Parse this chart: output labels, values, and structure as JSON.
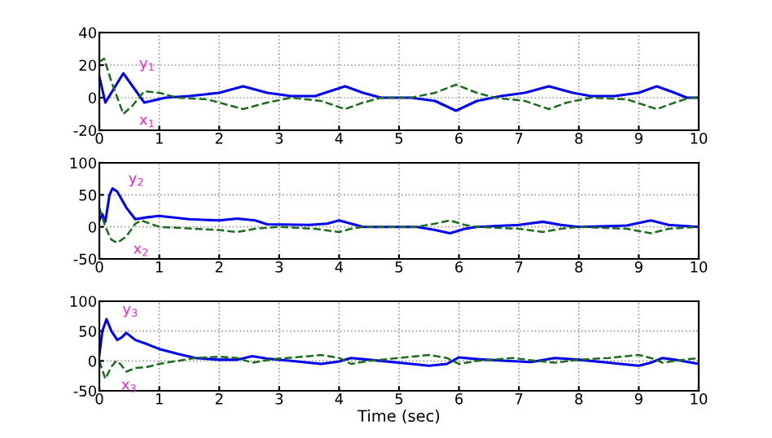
{
  "chart_data": [
    {
      "type": "line",
      "xlim": [
        0,
        10
      ],
      "xticks": [
        0,
        1,
        2,
        3,
        4,
        5,
        6,
        7,
        8,
        9,
        10
      ],
      "ylim": [
        -20,
        40
      ],
      "yticks": [
        -20,
        0,
        20,
        40
      ],
      "grid": true,
      "series": [
        {
          "name": "y$_{1}$",
          "color": "#0000ee",
          "line_style": "solid",
          "x": [
            0,
            0.1,
            0.4,
            0.75,
            1.1,
            1.5,
            2,
            2.4,
            2.8,
            3.2,
            3.6,
            4.1,
            4.4,
            4.7,
            5.2,
            5.6,
            5.95,
            6.3,
            6.7,
            7.1,
            7.5,
            7.9,
            8.2,
            8.6,
            9,
            9.3,
            9.6,
            9.8,
            10
          ],
          "values": [
            13,
            -3,
            15,
            -3,
            0,
            1,
            3,
            7,
            3,
            1,
            1,
            7,
            3,
            0,
            0,
            -2,
            -8,
            -2,
            1,
            3,
            7,
            3,
            1,
            1,
            3,
            7,
            3,
            0,
            0
          ]
        },
        {
          "name": "x$_{1}$",
          "color": "#1a6e1a",
          "line_style": "dashed",
          "x": [
            0,
            0.08,
            0.2,
            0.4,
            0.55,
            0.75,
            1,
            1.3,
            1.8,
            2.1,
            2.4,
            2.8,
            3.2,
            3.7,
            4.1,
            4.4,
            4.7,
            5.2,
            5.6,
            5.95,
            6.3,
            6.6,
            7.1,
            7.5,
            7.8,
            8.2,
            8.8,
            9.3,
            9.6,
            9.85,
            10
          ],
          "values": [
            22,
            24,
            10,
            -10,
            -5,
            4,
            3,
            0,
            -1,
            -4,
            -7,
            -3,
            0,
            -2,
            -7,
            -3,
            0,
            0,
            3,
            8,
            3,
            0,
            -2,
            -7,
            -3,
            0,
            -1,
            -7,
            -3,
            0,
            0
          ]
        }
      ],
      "legend": false
    },
    {
      "type": "line",
      "xlim": [
        0,
        10
      ],
      "xticks": [
        0,
        1,
        2,
        3,
        4,
        5,
        6,
        7,
        8,
        9,
        10
      ],
      "ylim": [
        -50,
        100
      ],
      "yticks": [
        -50,
        0,
        50,
        100
      ],
      "grid": true,
      "series": [
        {
          "name": "y$_{2}$",
          "color": "#0000ee",
          "line_style": "solid",
          "x": [
            0,
            0.05,
            0.1,
            0.17,
            0.22,
            0.3,
            0.45,
            0.6,
            0.8,
            1,
            1.5,
            2,
            2.3,
            2.6,
            2.8,
            3.5,
            3.8,
            4,
            4.2,
            4.4,
            5.3,
            5.6,
            5.85,
            6.1,
            6.3,
            7,
            7.4,
            7.7,
            8,
            8.8,
            9.2,
            9.5,
            10
          ],
          "values": [
            10,
            20,
            8,
            50,
            60,
            55,
            30,
            12,
            15,
            17,
            12,
            10,
            13,
            10,
            4,
            3,
            5,
            10,
            5,
            0,
            0,
            -5,
            -10,
            -3,
            0,
            3,
            8,
            3,
            0,
            2,
            10,
            3,
            0
          ]
        },
        {
          "name": "x$_{2}$",
          "color": "#1a6e1a",
          "line_style": "dashed",
          "x": [
            0,
            0.1,
            0.2,
            0.3,
            0.45,
            0.6,
            0.7,
            1,
            2,
            2.3,
            2.6,
            3,
            3.6,
            4,
            4.2,
            4.4,
            5.3,
            5.6,
            5.85,
            6.1,
            6.3,
            7,
            7.4,
            7.7,
            8,
            8.8,
            9.2,
            9.5,
            10
          ],
          "values": [
            30,
            0,
            -20,
            -25,
            -15,
            5,
            10,
            0,
            -5,
            -8,
            -3,
            0,
            -3,
            -8,
            -3,
            0,
            0,
            5,
            10,
            3,
            0,
            -3,
            -8,
            -3,
            0,
            -3,
            -10,
            -3,
            0
          ]
        }
      ],
      "legend": false
    },
    {
      "type": "line",
      "xlim": [
        0,
        10
      ],
      "xticks": [
        0,
        1,
        2,
        3,
        4,
        5,
        6,
        7,
        8,
        9,
        10
      ],
      "ylim": [
        -50,
        100
      ],
      "yticks": [
        -50,
        0,
        50,
        100
      ],
      "grid": true,
      "xlabel": "Time (sec)",
      "series": [
        {
          "name": "y$_{3}$",
          "color": "#0000ee",
          "line_style": "solid",
          "x": [
            0,
            0.05,
            0.12,
            0.2,
            0.3,
            0.38,
            0.45,
            0.6,
            0.8,
            1,
            1.3,
            1.6,
            2,
            2.3,
            2.55,
            2.8,
            3.2,
            3.7,
            4,
            4.2,
            4.5,
            5,
            5.5,
            5.8,
            6,
            6.3,
            6.8,
            7.2,
            7.6,
            8,
            8.5,
            9,
            9.2,
            9.4,
            9.6,
            10
          ],
          "values": [
            10,
            50,
            70,
            50,
            35,
            40,
            47,
            35,
            28,
            20,
            12,
            5,
            2,
            2,
            8,
            4,
            0,
            -5,
            -1,
            5,
            2,
            -3,
            -8,
            -5,
            6,
            3,
            0,
            -2,
            5,
            2,
            -3,
            -8,
            -3,
            5,
            2,
            -5
          ]
        },
        {
          "name": "x$_{3}$",
          "color": "#1a6e1a",
          "line_style": "dashed",
          "x": [
            0,
            0.1,
            0.2,
            0.28,
            0.35,
            0.45,
            0.6,
            0.8,
            1,
            1.3,
            1.6,
            2,
            2.3,
            2.55,
            2.9,
            3.5,
            3.7,
            4,
            4.2,
            4.5,
            5,
            5.5,
            5.8,
            6,
            6.3,
            6.9,
            7.3,
            7.6,
            8,
            8.5,
            9,
            9.2,
            9.4,
            9.6,
            10
          ],
          "values": [
            0,
            -30,
            -10,
            0,
            -5,
            -18,
            -12,
            -10,
            -5,
            0,
            5,
            7,
            5,
            -3,
            3,
            8,
            10,
            5,
            -5,
            0,
            5,
            10,
            5,
            -5,
            0,
            5,
            0,
            -3,
            2,
            5,
            10,
            5,
            -3,
            0,
            5
          ]
        }
      ],
      "legend": false
    }
  ]
}
